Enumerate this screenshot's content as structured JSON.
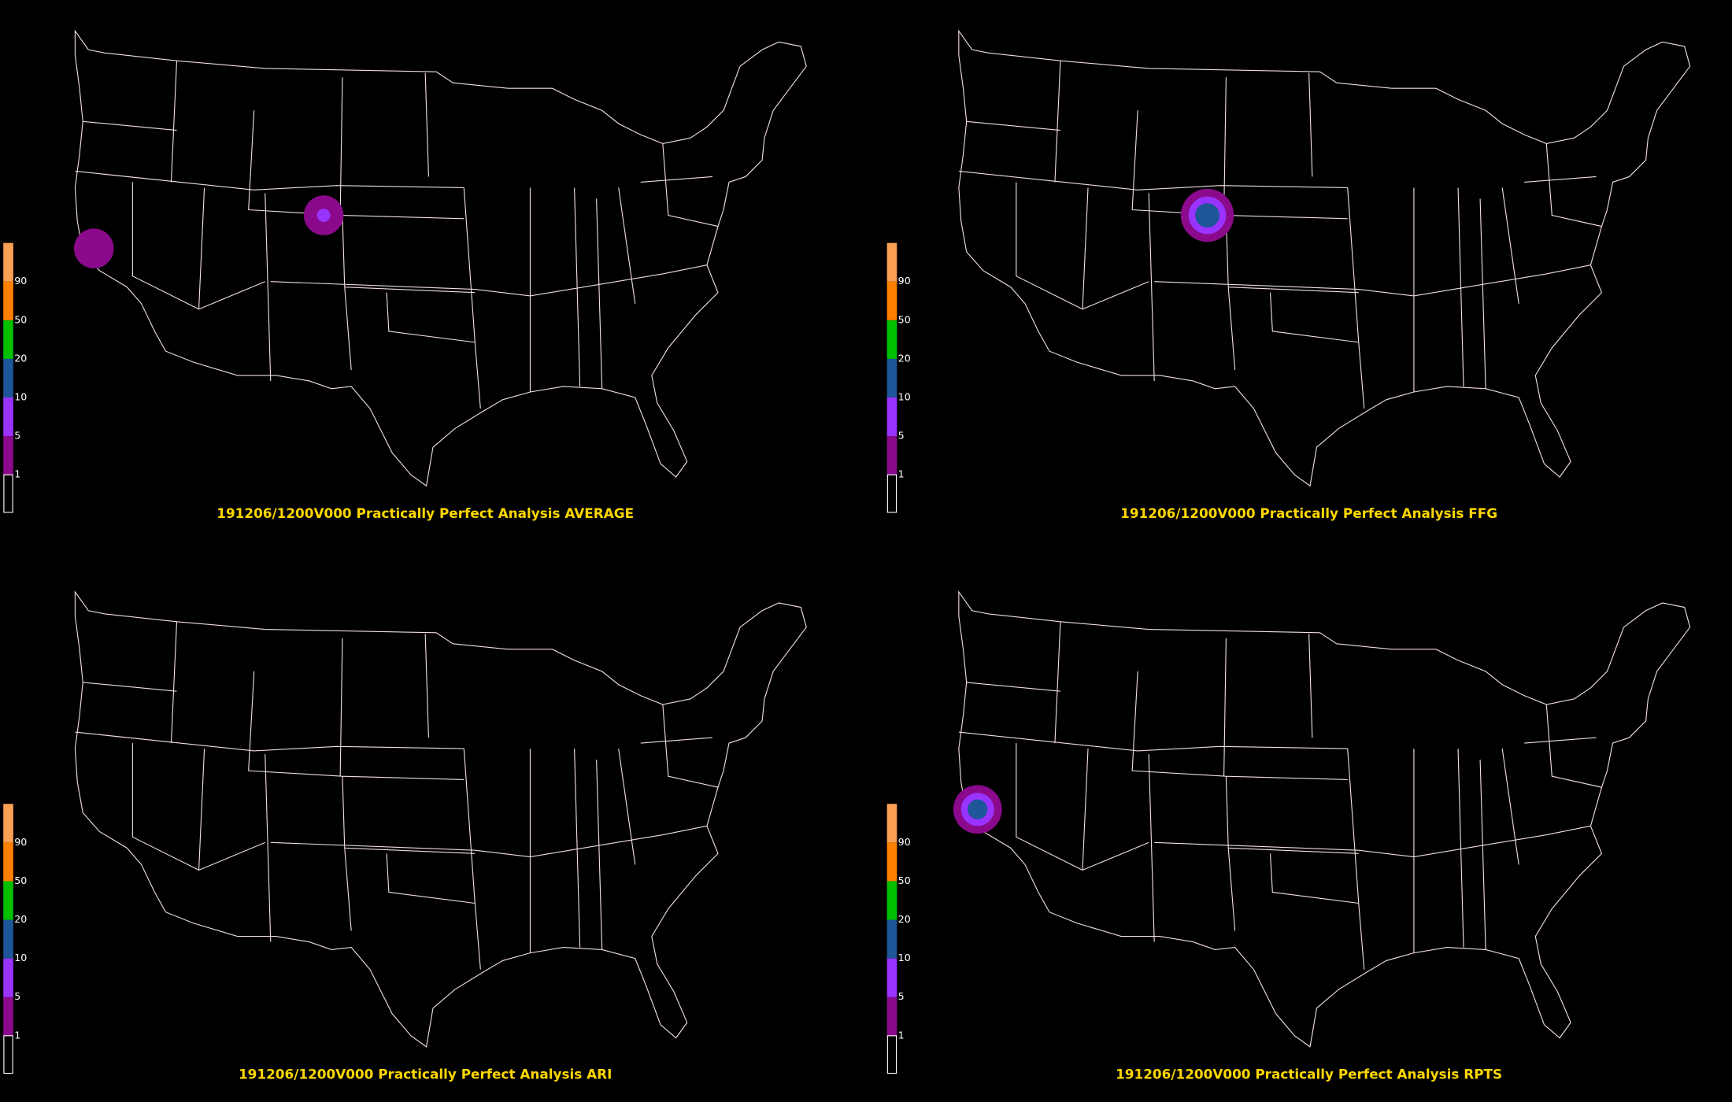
{
  "panels": [
    {
      "title": "191206/1200V000 Practically Perfect Analysis AVERAGE"
    },
    {
      "title": "191206/1200V000 Practically Perfect Analysis FFG"
    },
    {
      "title": "191206/1200V000 Practically Perfect Analysis ARI"
    },
    {
      "title": "191206/1200V000 Practically Perfect Analysis RPTS"
    }
  ],
  "legend": {
    "labels": [
      "1",
      "5",
      "10",
      "20",
      "50",
      "90"
    ],
    "colors": [
      "#8b0a8b",
      "#9933ff",
      "#1f5599",
      "#00c000",
      "#ff8000",
      "#f9a054"
    ]
  }
}
